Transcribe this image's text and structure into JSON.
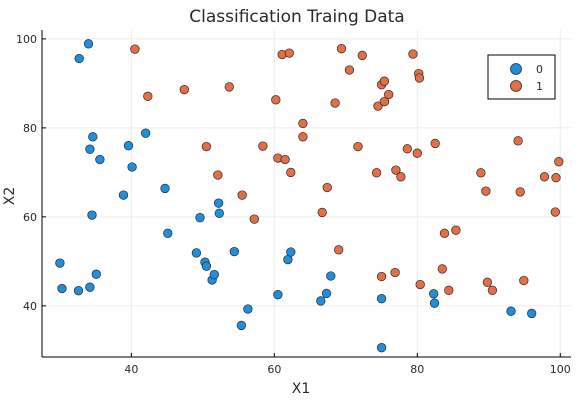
{
  "chart_data": {
    "type": "scatter",
    "title": "Classification Traing Data",
    "xlabel": "X1",
    "ylabel": "X2",
    "xlim": [
      27.5,
      101.5
    ],
    "ylim": [
      28.5,
      102
    ],
    "xticks": [
      40,
      60,
      80,
      100
    ],
    "yticks": [
      40,
      60,
      80,
      100
    ],
    "grid": true,
    "legend_position": "top-right",
    "series": [
      {
        "name": "0",
        "color": "#1f8fdc",
        "points": [
          [
            32.7,
            95.6
          ],
          [
            34.0,
            98.9
          ],
          [
            34.6,
            78.0
          ],
          [
            34.2,
            75.2
          ],
          [
            39.6,
            76.0
          ],
          [
            35.6,
            72.9
          ],
          [
            40.1,
            71.2
          ],
          [
            42.0,
            78.8
          ],
          [
            38.9,
            64.9
          ],
          [
            44.7,
            66.4
          ],
          [
            34.5,
            60.4
          ],
          [
            30.0,
            49.6
          ],
          [
            30.3,
            43.9
          ],
          [
            32.6,
            43.4
          ],
          [
            34.2,
            44.2
          ],
          [
            35.1,
            47.1
          ],
          [
            45.1,
            56.3
          ],
          [
            49.6,
            59.8
          ],
          [
            52.2,
            63.1
          ],
          [
            52.3,
            60.8
          ],
          [
            49.1,
            51.9
          ],
          [
            50.3,
            49.8
          ],
          [
            50.5,
            48.9
          ],
          [
            51.3,
            45.8
          ],
          [
            51.6,
            47.0
          ],
          [
            54.4,
            52.2
          ],
          [
            55.4,
            35.6
          ],
          [
            56.3,
            39.3
          ],
          [
            60.5,
            42.5
          ],
          [
            61.9,
            50.4
          ],
          [
            62.3,
            52.1
          ],
          [
            66.5,
            41.1
          ],
          [
            67.3,
            42.8
          ],
          [
            67.9,
            46.7
          ],
          [
            75.0,
            41.6
          ],
          [
            75.0,
            30.6
          ],
          [
            82.3,
            42.7
          ],
          [
            82.4,
            40.6
          ],
          [
            93.1,
            38.8
          ],
          [
            96.0,
            38.3
          ]
        ]
      },
      {
        "name": "1",
        "color": "#e26f46",
        "points": [
          [
            40.5,
            97.7
          ],
          [
            42.3,
            87.1
          ],
          [
            47.4,
            88.6
          ],
          [
            50.5,
            75.8
          ],
          [
            52.1,
            69.4
          ],
          [
            53.7,
            89.2
          ],
          [
            55.5,
            64.9
          ],
          [
            57.2,
            59.5
          ],
          [
            58.4,
            75.9
          ],
          [
            60.2,
            86.3
          ],
          [
            60.5,
            73.2
          ],
          [
            61.1,
            96.5
          ],
          [
            61.5,
            72.9
          ],
          [
            62.1,
            96.8
          ],
          [
            62.3,
            70.0
          ],
          [
            64.0,
            81.0
          ],
          [
            64.0,
            78.0
          ],
          [
            66.7,
            61.0
          ],
          [
            67.4,
            66.6
          ],
          [
            68.5,
            85.6
          ],
          [
            69.0,
            52.6
          ],
          [
            69.4,
            97.8
          ],
          [
            70.5,
            93.0
          ],
          [
            71.7,
            75.8
          ],
          [
            72.3,
            96.3
          ],
          [
            74.3,
            69.9
          ],
          [
            74.5,
            84.9
          ],
          [
            75.0,
            89.7
          ],
          [
            75.4,
            85.9
          ],
          [
            75.4,
            90.5
          ],
          [
            76.0,
            87.5
          ],
          [
            75.0,
            46.6
          ],
          [
            76.9,
            47.5
          ],
          [
            77.0,
            70.5
          ],
          [
            77.7,
            69.0
          ],
          [
            78.6,
            75.3
          ],
          [
            79.4,
            96.6
          ],
          [
            80.0,
            74.3
          ],
          [
            80.2,
            92.2
          ],
          [
            80.3,
            91.2
          ],
          [
            80.4,
            44.8
          ],
          [
            82.5,
            76.5
          ],
          [
            83.5,
            48.3
          ],
          [
            83.8,
            56.3
          ],
          [
            84.4,
            43.5
          ],
          [
            85.4,
            57.0
          ],
          [
            88.9,
            69.9
          ],
          [
            89.6,
            65.8
          ],
          [
            89.8,
            45.3
          ],
          [
            90.5,
            43.5
          ],
          [
            94.1,
            77.1
          ],
          [
            94.4,
            65.6
          ],
          [
            94.9,
            45.7
          ],
          [
            97.8,
            69.0
          ],
          [
            99.3,
            61.1
          ],
          [
            99.4,
            68.8
          ],
          [
            99.8,
            72.4
          ]
        ]
      }
    ]
  }
}
